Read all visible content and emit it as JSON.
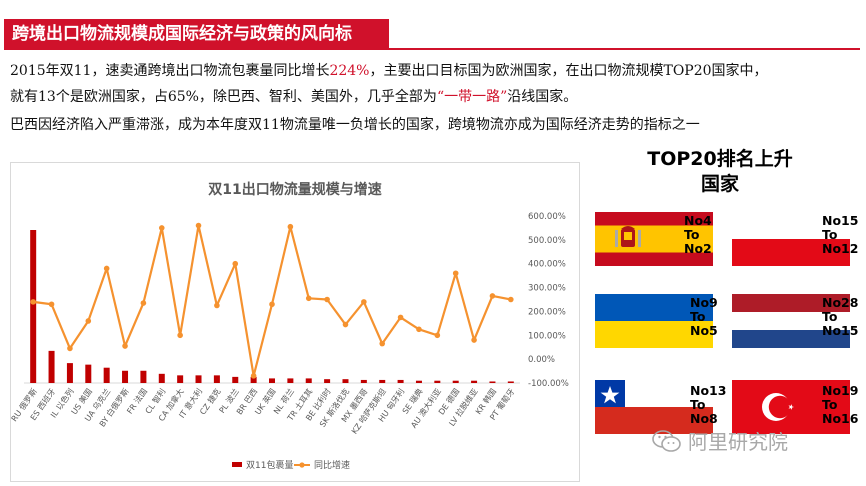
{
  "header": {
    "title": "跨境出口物流规模成国际经济与政策的风向标"
  },
  "paragraphs": {
    "p1_a": "2015年双11，速卖通跨境出口物流包裹量同比增长",
    "p1_highlight": "224%",
    "p1_b": "，主要出口目标国为欧洲国家，在出口物流规模TOP20国家中，",
    "p2_a": "就有13个是欧洲国家，占65%，除巴西、智利、美国外，几乎全部为",
    "p2_highlight": "“一带一路”",
    "p2_b": "沿线国家。",
    "p3": "巴西因经济陷入严重滞涨，成为本年度双11物流量唯一负增长的国家，跨境物流亦成为国际经济走势的指标之一"
  },
  "top20": {
    "title_line1": "TOP20排名上升",
    "title_line2": "国家",
    "items": [
      {
        "flag": "spain-flag",
        "line1": "No4",
        "line2": "To",
        "line3": "No2"
      },
      {
        "flag": "poland-flag",
        "line1": "No15",
        "line2": "To",
        "line3": "No12"
      },
      {
        "flag": "ukraine-flag",
        "line1": "No9",
        "line2": "To",
        "line3": "No5"
      },
      {
        "flag": "netherlands-flag",
        "line1": "No28",
        "line2": "To",
        "line3": "No15"
      },
      {
        "flag": "chile-flag",
        "line1": "No13",
        "line2": "To",
        "line3": "No8"
      },
      {
        "flag": "turkey-flag",
        "line1": "No19",
        "line2": "To",
        "line3": "No16"
      }
    ]
  },
  "watermark": {
    "text": "阿里研究院",
    "icon": "wechat-icon"
  },
  "colors": {
    "accent_red": "#d0112b",
    "line_orange": "#f5922f",
    "bar_red": "#c00000"
  },
  "chart_data": {
    "type": "bar+line",
    "title": "双11出口物流量规模与增速",
    "categories": [
      "RU 俄罗斯",
      "ES 西班牙",
      "IL 以色列",
      "US 美国",
      "UA 乌克兰",
      "BY 白俄罗斯",
      "FR 法国",
      "CL 智利",
      "CA 加拿大",
      "IT 意大利",
      "CZ 捷克",
      "PL 波兰",
      "BR 巴西",
      "UK 英国",
      "NL 荷兰",
      "TR 土耳其",
      "BE 比利时",
      "SK 斯洛伐克",
      "MX 墨西哥",
      "KZ 哈萨克斯坦",
      "HU 匈牙利",
      "SE 瑞典",
      "AU 澳大利亚",
      "DE 德国",
      "LV 拉脱维亚",
      "KR 韩国",
      "PT 葡萄牙"
    ],
    "series": [
      {
        "name": "双11包裹量",
        "type": "bar",
        "axis": "left",
        "values": [
          100,
          21,
          13,
          12,
          10,
          8,
          8,
          6,
          5,
          5,
          5,
          4,
          4,
          3,
          3,
          3,
          2.5,
          2.5,
          2,
          2,
          2,
          1.5,
          1.5,
          1.5,
          1.5,
          1,
          1
        ]
      },
      {
        "name": "同比增速",
        "type": "line",
        "axis": "right",
        "values": [
          240,
          230,
          45,
          160,
          380,
          55,
          235,
          550,
          100,
          560,
          225,
          400,
          -70,
          230,
          555,
          255,
          250,
          145,
          240,
          65,
          175,
          125,
          100,
          360,
          80,
          265,
          250
        ]
      }
    ],
    "y_right_ticks": [
      "600.00%",
      "500.00%",
      "400.00%",
      "300.00%",
      "200.00%",
      "100.00%",
      "0.00%",
      "-100.00%"
    ],
    "y_right_range": [
      -100,
      600
    ],
    "legend": "bottom",
    "grid": false
  }
}
